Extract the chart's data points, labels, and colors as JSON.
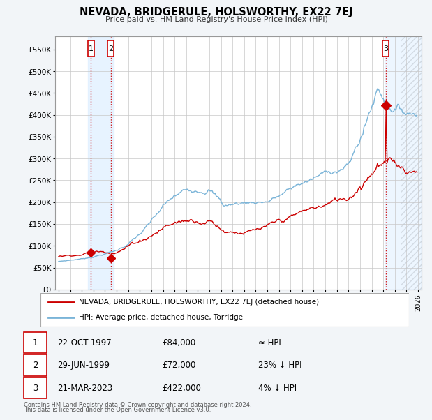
{
  "title": "NEVADA, BRIDGERULE, HOLSWORTHY, EX22 7EJ",
  "subtitle": "Price paid vs. HM Land Registry's House Price Index (HPI)",
  "ylim": [
    0,
    580000
  ],
  "yticks": [
    0,
    50000,
    100000,
    150000,
    200000,
    250000,
    300000,
    350000,
    400000,
    450000,
    500000,
    550000
  ],
  "xlim_start": 1994.7,
  "xlim_end": 2026.3,
  "legend_line1": "NEVADA, BRIDGERULE, HOLSWORTHY, EX22 7EJ (detached house)",
  "legend_line2": "HPI: Average price, detached house, Torridge",
  "t1_year": 1997.79,
  "t1_price": 84000,
  "t2_year": 1999.49,
  "t2_price": 72000,
  "t3_year": 2023.21,
  "t3_price": 422000,
  "footer1": "Contains HM Land Registry data © Crown copyright and database right 2024.",
  "footer2": "This data is licensed under the Open Government Licence v3.0.",
  "hpi_color": "#7ab4d8",
  "price_color": "#cc0000",
  "background_color": "#f2f5f8",
  "plot_bg": "#ffffff",
  "grid_color": "#c8c8c8",
  "shade_color": "#ddeeff",
  "hatch_color": "#c0c8d0",
  "row_data": [
    [
      1,
      "22-OCT-1997",
      "£84,000",
      "≈ HPI"
    ],
    [
      2,
      "29-JUN-1999",
      "£72,000",
      "23% ↓ HPI"
    ],
    [
      3,
      "21-MAR-2023",
      "£422,000",
      "4% ↓ HPI"
    ]
  ]
}
